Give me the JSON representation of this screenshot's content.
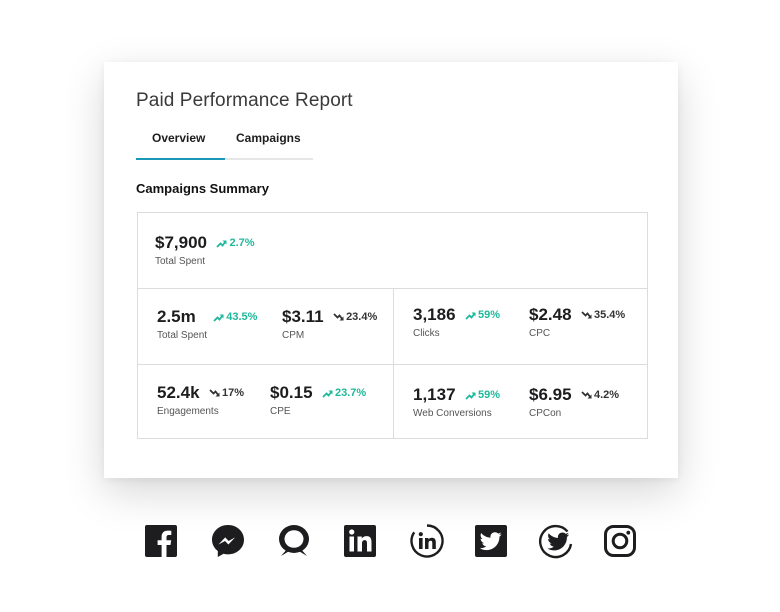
{
  "report": {
    "title": "Paid Performance Report",
    "tabs": [
      {
        "label": "Overview",
        "active": true
      },
      {
        "label": "Campaigns",
        "active": false
      }
    ],
    "section_title": "Campaigns Summary"
  },
  "metrics": {
    "total_spent_top": {
      "value": "$7,900",
      "change": "2.7%",
      "direction": "up",
      "label": "Total Spent"
    },
    "total_spent": {
      "value": "2.5m",
      "change": "43.5%",
      "direction": "up",
      "label": "Total Spent"
    },
    "cpm": {
      "value": "$3.11",
      "change": "23.4%",
      "direction": "down",
      "label": "CPM"
    },
    "clicks": {
      "value": "3,186",
      "change": "59%",
      "direction": "up",
      "label": "Clicks"
    },
    "cpc": {
      "value": "$2.48",
      "change": "35.4%",
      "direction": "down",
      "label": "CPC"
    },
    "engagements": {
      "value": "52.4k",
      "change": "17%",
      "direction": "down",
      "label": "Engagements"
    },
    "cpe": {
      "value": "$0.15",
      "change": "23.7%",
      "direction": "up",
      "label": "CPE"
    },
    "web_conversions": {
      "value": "1,137",
      "change": "59%",
      "direction": "up",
      "label": "Web Conversions"
    },
    "cpcon": {
      "value": "$6.95",
      "change": "4.2%",
      "direction": "down",
      "label": "CPCon"
    }
  },
  "colors": {
    "accent": "#1a98b8",
    "positive": "#1fb89a",
    "negative": "#333333"
  },
  "social_icons": [
    "facebook-icon",
    "messenger-icon",
    "chat-bubble-icon",
    "linkedin-icon",
    "linkedin-circle-icon",
    "twitter-icon",
    "twitter-circle-icon",
    "instagram-icon"
  ]
}
